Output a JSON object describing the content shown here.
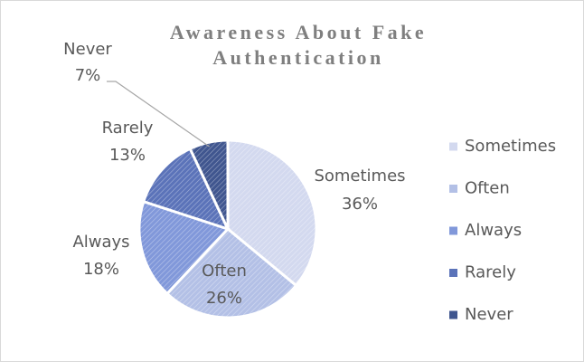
{
  "chart_data": {
    "type": "pie",
    "title": "Awareness About Fake Authentication",
    "categories": [
      "Sometimes",
      "Often",
      "Always",
      "Rarely",
      "Never"
    ],
    "values": [
      36,
      26,
      18,
      13,
      7
    ],
    "value_labels": [
      "36%",
      "26%",
      "18%",
      "13%",
      "7%"
    ],
    "colors": [
      "#d3d9ef",
      "#b3c0e6",
      "#8198da",
      "#5b73b9",
      "#40568f"
    ],
    "legend": "right"
  }
}
